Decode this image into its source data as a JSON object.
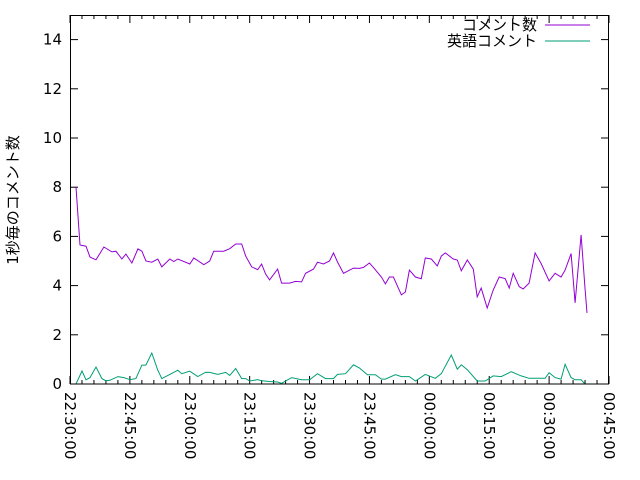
{
  "chart_data": {
    "type": "line",
    "title": "",
    "xlabel": "",
    "ylabel": "1秒毎のコメント数",
    "xlim": [
      "22:30:00",
      "00:45:00"
    ],
    "ylim": [
      0,
      15
    ],
    "grid": false,
    "legend_position": "top-right",
    "x_ticks": [
      "22:30:00",
      "22:45:00",
      "23:00:00",
      "23:15:00",
      "23:30:00",
      "23:45:00",
      "00:00:00",
      "00:15:00",
      "00:30:00",
      "00:45:00"
    ],
    "y_ticks": [
      "0",
      "2",
      "4",
      "6",
      "8",
      "10",
      "12",
      "14"
    ],
    "series": [
      {
        "name": "コメント数",
        "color": "#9400d3",
        "points": [
          [
            "22:31:30",
            8.0
          ],
          [
            "22:32:30",
            5.65
          ],
          [
            "22:34:00",
            5.6
          ],
          [
            "22:35:00",
            5.16
          ],
          [
            "22:36:30",
            5.05
          ],
          [
            "22:38:30",
            5.57
          ],
          [
            "22:40:30",
            5.37
          ],
          [
            "22:41:30",
            5.4
          ],
          [
            "22:43:00",
            5.08
          ],
          [
            "22:44:00",
            5.28
          ],
          [
            "22:45:30",
            4.92
          ],
          [
            "22:47:00",
            5.49
          ],
          [
            "22:48:00",
            5.4
          ],
          [
            "22:49:00",
            5.0
          ],
          [
            "22:50:30",
            4.95
          ],
          [
            "22:52:00",
            5.08
          ],
          [
            "22:53:00",
            4.76
          ],
          [
            "22:55:00",
            5.08
          ],
          [
            "22:56:00",
            4.98
          ],
          [
            "22:57:00",
            5.08
          ],
          [
            "23:00:00",
            4.88
          ],
          [
            "23:01:00",
            5.12
          ],
          [
            "23:03:30",
            4.85
          ],
          [
            "23:05:00",
            5.0
          ],
          [
            "23:06:00",
            5.4
          ],
          [
            "23:08:30",
            5.4
          ],
          [
            "23:10:00",
            5.5
          ],
          [
            "23:11:30",
            5.69
          ],
          [
            "23:13:00",
            5.69
          ],
          [
            "23:14:00",
            5.2
          ],
          [
            "23:15:30",
            4.76
          ],
          [
            "23:17:00",
            4.65
          ],
          [
            "23:18:00",
            4.88
          ],
          [
            "23:19:00",
            4.47
          ],
          [
            "23:20:00",
            4.23
          ],
          [
            "23:22:00",
            4.67
          ],
          [
            "23:23:00",
            4.1
          ],
          [
            "23:25:00",
            4.1
          ],
          [
            "23:26:30",
            4.17
          ],
          [
            "23:28:00",
            4.15
          ],
          [
            "23:29:00",
            4.5
          ],
          [
            "23:31:00",
            4.67
          ],
          [
            "23:32:00",
            4.95
          ],
          [
            "23:33:30",
            4.88
          ],
          [
            "23:35:00",
            5.0
          ],
          [
            "23:36:00",
            5.33
          ],
          [
            "23:37:00",
            4.96
          ],
          [
            "23:38:30",
            4.5
          ],
          [
            "23:41:00",
            4.71
          ],
          [
            "23:42:30",
            4.7
          ],
          [
            "23:43:30",
            4.74
          ],
          [
            "23:45:00",
            4.92
          ],
          [
            "23:46:00",
            4.74
          ],
          [
            "23:48:00",
            4.35
          ],
          [
            "23:49:00",
            4.07
          ],
          [
            "23:50:00",
            4.35
          ],
          [
            "23:51:00",
            4.35
          ],
          [
            "23:53:00",
            3.62
          ],
          [
            "23:54:00",
            3.74
          ],
          [
            "23:55:00",
            4.63
          ],
          [
            "23:56:30",
            4.35
          ],
          [
            "23:58:00",
            4.28
          ],
          [
            "23:59:00",
            5.12
          ],
          [
            "00:00:30",
            5.08
          ],
          [
            "00:02:00",
            4.8
          ],
          [
            "00:03:00",
            5.2
          ],
          [
            "00:04:00",
            5.33
          ],
          [
            "00:06:00",
            5.08
          ],
          [
            "00:07:00",
            5.04
          ],
          [
            "00:08:00",
            4.6
          ],
          [
            "00:09:30",
            5.04
          ],
          [
            "00:11:00",
            4.67
          ],
          [
            "00:12:00",
            3.54
          ],
          [
            "00:13:00",
            3.9
          ],
          [
            "00:14:30",
            3.09
          ],
          [
            "00:16:00",
            3.82
          ],
          [
            "00:17:30",
            4.35
          ],
          [
            "00:19:00",
            4.28
          ],
          [
            "00:20:00",
            3.9
          ],
          [
            "00:21:00",
            4.5
          ],
          [
            "00:22:30",
            3.96
          ],
          [
            "00:23:30",
            3.86
          ],
          [
            "00:25:00",
            4.1
          ],
          [
            "00:26:30",
            5.33
          ],
          [
            "00:28:00",
            4.9
          ],
          [
            "00:30:00",
            4.19
          ],
          [
            "00:31:30",
            4.5
          ],
          [
            "00:33:00",
            4.35
          ],
          [
            "00:34:00",
            4.63
          ],
          [
            "00:35:30",
            5.3
          ],
          [
            "00:36:30",
            3.3
          ],
          [
            "00:38:00",
            6.06
          ],
          [
            "00:39:00",
            3.9
          ],
          [
            "00:39:30",
            2.89
          ]
        ]
      },
      {
        "name": "英語コメント",
        "color": "#009e73",
        "points": [
          [
            "22:31:30",
            0.0
          ],
          [
            "22:33:00",
            0.53
          ],
          [
            "22:34:00",
            0.17
          ],
          [
            "22:35:00",
            0.26
          ],
          [
            "22:36:30",
            0.69
          ],
          [
            "22:38:00",
            0.22
          ],
          [
            "22:39:00",
            0.13
          ],
          [
            "22:40:00",
            0.15
          ],
          [
            "22:42:00",
            0.3
          ],
          [
            "22:43:30",
            0.26
          ],
          [
            "22:45:00",
            0.18
          ],
          [
            "22:46:30",
            0.22
          ],
          [
            "22:48:00",
            0.77
          ],
          [
            "22:49:00",
            0.77
          ],
          [
            "22:50:30",
            1.26
          ],
          [
            "22:52:00",
            0.56
          ],
          [
            "22:53:00",
            0.22
          ],
          [
            "22:55:00",
            0.39
          ],
          [
            "22:57:00",
            0.56
          ],
          [
            "22:58:00",
            0.42
          ],
          [
            "23:00:00",
            0.52
          ],
          [
            "23:02:00",
            0.3
          ],
          [
            "23:04:00",
            0.48
          ],
          [
            "23:05:00",
            0.47
          ],
          [
            "23:07:00",
            0.39
          ],
          [
            "23:09:00",
            0.47
          ],
          [
            "23:10:00",
            0.35
          ],
          [
            "23:11:30",
            0.63
          ],
          [
            "23:13:00",
            0.22
          ],
          [
            "23:14:00",
            0.22
          ],
          [
            "23:15:00",
            0.12
          ],
          [
            "23:17:00",
            0.18
          ],
          [
            "23:18:00",
            0.13
          ],
          [
            "23:20:00",
            0.1
          ],
          [
            "23:22:00",
            0.08
          ],
          [
            "23:23:00",
            0.03
          ],
          [
            "23:25:30",
            0.26
          ],
          [
            "23:28:00",
            0.17
          ],
          [
            "23:30:00",
            0.17
          ],
          [
            "23:32:00",
            0.42
          ],
          [
            "23:34:00",
            0.22
          ],
          [
            "23:36:00",
            0.22
          ],
          [
            "23:37:00",
            0.39
          ],
          [
            "23:39:00",
            0.42
          ],
          [
            "23:41:00",
            0.78
          ],
          [
            "23:42:30",
            0.65
          ],
          [
            "23:44:30",
            0.38
          ],
          [
            "23:46:30",
            0.38
          ],
          [
            "23:48:00",
            0.2
          ],
          [
            "23:49:00",
            0.2
          ],
          [
            "23:51:30",
            0.38
          ],
          [
            "23:53:00",
            0.3
          ],
          [
            "23:55:00",
            0.3
          ],
          [
            "23:56:30",
            0.12
          ],
          [
            "23:59:00",
            0.39
          ],
          [
            "00:01:30",
            0.23
          ],
          [
            "00:03:00",
            0.42
          ],
          [
            "00:05:30",
            1.18
          ],
          [
            "00:07:00",
            0.6
          ],
          [
            "00:08:00",
            0.78
          ],
          [
            "00:09:30",
            0.58
          ],
          [
            "00:12:00",
            0.12
          ],
          [
            "00:14:00",
            0.12
          ],
          [
            "00:16:00",
            0.33
          ],
          [
            "00:18:00",
            0.3
          ],
          [
            "00:20:30",
            0.5
          ],
          [
            "00:23:00",
            0.33
          ],
          [
            "00:25:00",
            0.23
          ],
          [
            "00:29:00",
            0.23
          ],
          [
            "00:30:00",
            0.46
          ],
          [
            "00:31:30",
            0.26
          ],
          [
            "00:33:00",
            0.2
          ],
          [
            "00:34:00",
            0.8
          ],
          [
            "00:35:30",
            0.26
          ],
          [
            "00:36:30",
            0.17
          ],
          [
            "00:38:00",
            0.17
          ],
          [
            "00:39:00",
            0.0
          ]
        ]
      }
    ]
  }
}
